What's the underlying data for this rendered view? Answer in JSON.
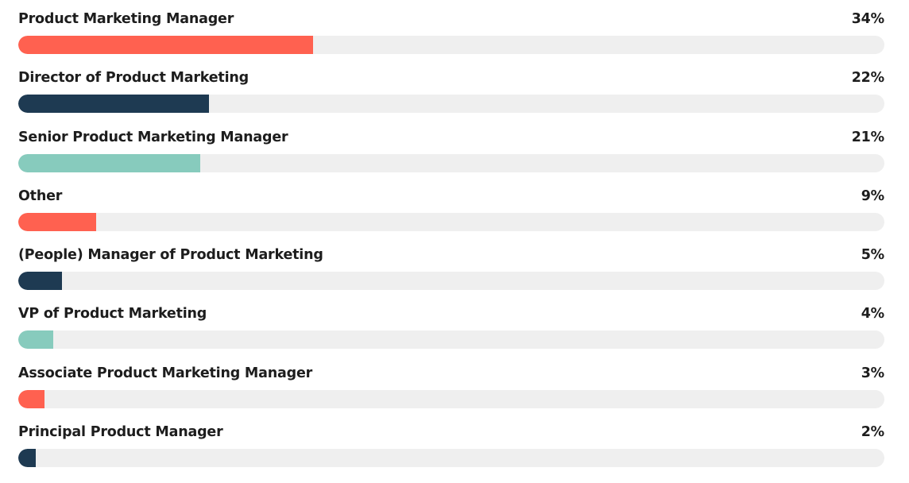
{
  "chart_data": {
    "type": "bar",
    "orientation": "horizontal",
    "unit": "%",
    "xlim": [
      0,
      100
    ],
    "grid": false,
    "categories": [
      "Product Marketing Manager",
      "Director of Product Marketing",
      "Senior Product Marketing Manager",
      "Other",
      "(People) Manager of Product Marketing",
      "VP of Product Marketing",
      "Associate Product Marketing Manager",
      "Principal Product Manager"
    ],
    "values": [
      34,
      22,
      21,
      9,
      5,
      4,
      3,
      2
    ],
    "value_labels": [
      "34%",
      "22%",
      "21%",
      "9%",
      "5%",
      "4%",
      "3%",
      "2%"
    ],
    "colors": [
      "#ff6150",
      "#1e3a52",
      "#87cbbd",
      "#ff6150",
      "#1e3a52",
      "#87cbbd",
      "#ff6150",
      "#1e3a52"
    ],
    "track_color": "#efefef"
  }
}
